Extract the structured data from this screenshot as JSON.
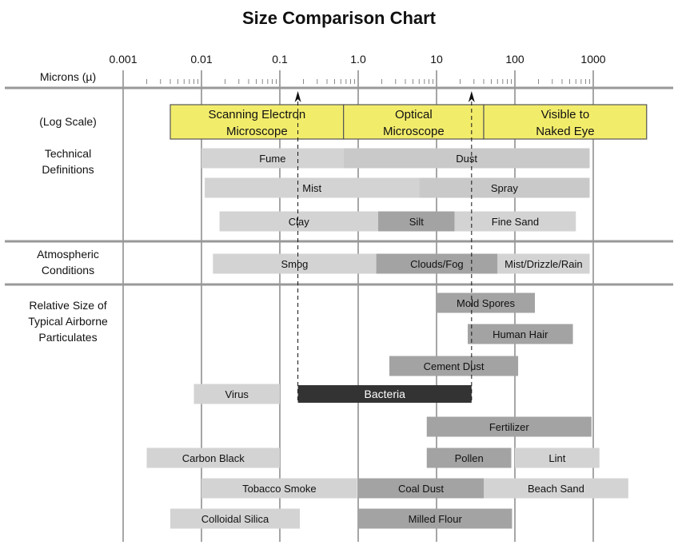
{
  "chart_data": {
    "type": "range-bar",
    "title": "Size Comparison Chart",
    "axis": {
      "label": "Microns (µ)",
      "scale": "log",
      "range": [
        0.001,
        1000
      ],
      "tick_labels": [
        "0.001",
        "0.01",
        "0.1",
        "1.0",
        "10",
        "100",
        "1000"
      ],
      "tick_values": [
        0.001,
        0.01,
        0.1,
        1,
        10,
        100,
        1000
      ]
    },
    "sections": [
      {
        "label": "(Log Scale)"
      },
      {
        "label": "Technical Definitions"
      },
      {
        "label": "Atmospheric Conditions"
      },
      {
        "label": "Relative Size of Typical Airborne Particulates"
      }
    ],
    "markers": [
      0.17,
      28
    ],
    "microscopes": [
      {
        "label": "Scanning Electron Microscope",
        "from": 0.004,
        "to": 0.65,
        "color": "#f2ec6b"
      },
      {
        "label": "Optical Microscope",
        "from": 0.65,
        "to": 40,
        "color": "#f2ec6b"
      },
      {
        "label": "Visible to Naked Eye",
        "from": 40,
        "to": 4800,
        "color": "#f2ec6b"
      }
    ],
    "rows": [
      {
        "section": "Technical Definitions",
        "bars": [
          {
            "label": "Fume",
            "from": 0.01,
            "to": 0.65,
            "color": "#d3d3d3"
          },
          {
            "label": "Dust",
            "from": 0.65,
            "to": 900,
            "color": "#c9c9c9"
          }
        ]
      },
      {
        "section": "Technical Definitions",
        "bars": [
          {
            "label": "Mist",
            "from": 0.011,
            "to": 6,
            "color": "#d3d3d3"
          },
          {
            "label": "Spray",
            "from": 6,
            "to": 900,
            "color": "#c9c9c9"
          }
        ]
      },
      {
        "section": "Technical Definitions",
        "bars": [
          {
            "label": "Clay",
            "from": 0.017,
            "to": 1.8,
            "color": "#d3d3d3"
          },
          {
            "label": "Silt",
            "from": 1.8,
            "to": 17,
            "color": "#a3a3a3"
          },
          {
            "label": "Fine Sand",
            "from": 17,
            "to": 600,
            "color": "#d3d3d3"
          }
        ]
      },
      {
        "section": "Atmospheric Conditions",
        "bars": [
          {
            "label": "Smog",
            "from": 0.014,
            "to": 1.7,
            "color": "#d3d3d3"
          },
          {
            "label": "Clouds/Fog",
            "from": 1.7,
            "to": 60,
            "color": "#a3a3a3"
          },
          {
            "label": "Mist/Drizzle/Rain",
            "from": 60,
            "to": 900,
            "color": "#d3d3d3"
          }
        ]
      },
      {
        "section": "Relative Size of Typical Airborne Particulates",
        "bars": [
          {
            "label": "Mold Spores",
            "from": 10,
            "to": 180,
            "color": "#a3a3a3"
          }
        ]
      },
      {
        "section": "Relative Size of Typical Airborne Particulates",
        "bars": [
          {
            "label": "Human Hair",
            "from": 25,
            "to": 550,
            "color": "#a3a3a3"
          }
        ]
      },
      {
        "section": "Relative Size of Typical Airborne Particulates",
        "bars": [
          {
            "label": "Cement Dust",
            "from": 2.5,
            "to": 110,
            "color": "#a3a3a3"
          }
        ]
      },
      {
        "section": "Relative Size of Typical Airborne Particulates",
        "bars": [
          {
            "label": "Virus",
            "from": 0.008,
            "to": 0.1,
            "color": "#d3d3d3"
          },
          {
            "label": "Bacteria",
            "from": 0.17,
            "to": 28,
            "color": "#333333",
            "text_color": "#ffffff"
          }
        ]
      },
      {
        "section": "Relative Size of Typical Airborne Particulates",
        "bars": [
          {
            "label": "Fertilizer",
            "from": 7.5,
            "to": 950,
            "color": "#a3a3a3"
          }
        ]
      },
      {
        "section": "Relative Size of Typical Airborne Particulates",
        "bars": [
          {
            "label": "Carbon Black",
            "from": 0.002,
            "to": 0.1,
            "color": "#d3d3d3"
          },
          {
            "label": "Pollen",
            "from": 7.5,
            "to": 90,
            "color": "#a3a3a3"
          },
          {
            "label": "Lint",
            "from": 100,
            "to": 1200,
            "color": "#d3d3d3"
          }
        ]
      },
      {
        "section": "Relative Size of Typical Airborne Particulates",
        "bars": [
          {
            "label": "Tobacco Smoke",
            "from": 0.01,
            "to": 0.97,
            "color": "#d3d3d3"
          },
          {
            "label": "Coal Dust",
            "from": 1,
            "to": 40,
            "color": "#a3a3a3"
          },
          {
            "label": "Beach Sand",
            "from": 40,
            "to": 2800,
            "color": "#d3d3d3"
          }
        ]
      },
      {
        "section": "Relative Size of Typical Airborne Particulates",
        "bars": [
          {
            "label": "Colloidal Silica",
            "from": 0.004,
            "to": 0.18,
            "color": "#d3d3d3"
          },
          {
            "label": "Milled Flour",
            "from": 1,
            "to": 92,
            "color": "#a3a3a3"
          }
        ]
      }
    ]
  }
}
